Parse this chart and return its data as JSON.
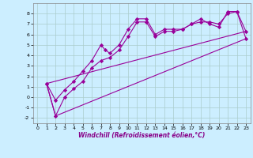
{
  "xlabel": "Windchill (Refroidissement éolien,°C)",
  "bg_color": "#cceeff",
  "line_color": "#990099",
  "marker": "D",
  "markersize": 2.2,
  "linewidth": 0.8,
  "xlim": [
    -0.5,
    23.5
  ],
  "ylim": [
    -2.5,
    9.0
  ],
  "xticks": [
    0,
    1,
    2,
    3,
    4,
    5,
    6,
    7,
    8,
    9,
    10,
    11,
    12,
    13,
    14,
    15,
    16,
    17,
    18,
    19,
    20,
    21,
    22,
    23
  ],
  "yticks": [
    -2,
    -1,
    0,
    1,
    2,
    3,
    4,
    5,
    6,
    7,
    8
  ],
  "grid_color": "#aacccc",
  "series": [
    {
      "x": [
        1,
        2,
        3,
        4,
        5,
        6,
        7,
        7.5,
        8,
        9,
        10,
        11,
        12,
        13,
        14,
        15,
        16,
        17,
        18,
        19,
        20,
        21,
        22,
        23
      ],
      "y": [
        1.3,
        -0.3,
        0.7,
        1.5,
        2.5,
        3.5,
        5.0,
        4.5,
        4.2,
        5.0,
        6.5,
        7.5,
        7.5,
        6.0,
        6.5,
        6.5,
        6.5,
        7.0,
        7.5,
        7.0,
        6.7,
        8.2,
        8.2,
        6.3
      ],
      "has_markers": true
    },
    {
      "x": [
        1,
        2,
        3,
        4,
        5,
        6,
        7,
        8,
        9,
        10,
        11,
        12,
        13,
        14,
        15,
        16,
        17,
        18,
        19,
        20,
        21,
        22,
        23
      ],
      "y": [
        1.3,
        -1.8,
        0.0,
        0.8,
        1.5,
        2.8,
        3.5,
        3.8,
        4.5,
        5.8,
        7.2,
        7.2,
        5.8,
        6.3,
        6.3,
        6.5,
        7.0,
        7.2,
        7.2,
        7.0,
        8.0,
        8.2,
        5.6
      ],
      "has_markers": true
    },
    {
      "x": [
        1,
        2,
        23
      ],
      "y": [
        1.3,
        -1.8,
        5.6
      ],
      "has_markers": false
    },
    {
      "x": [
        1,
        23
      ],
      "y": [
        1.3,
        6.3
      ],
      "has_markers": false
    }
  ]
}
